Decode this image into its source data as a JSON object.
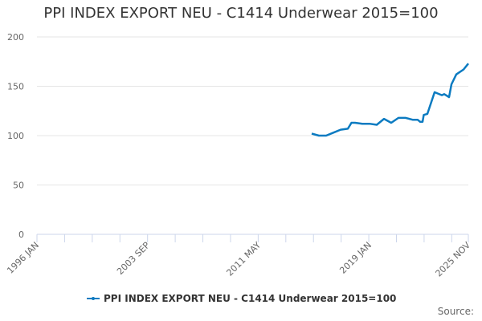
{
  "chart_data": {
    "type": "line",
    "title": "PPI INDEX EXPORT NEU - C1414 Underwear 2015=100",
    "xlabel": "",
    "ylabel": "",
    "ylim": [
      0,
      200
    ],
    "yticks": [
      0,
      50,
      100,
      150,
      200
    ],
    "xticks": [
      "1996 JAN",
      "2003 SEP",
      "2011 MAY",
      "2019 JAN",
      "2025 NOV"
    ],
    "grid": true,
    "legend_position": "bottom",
    "series": [
      {
        "name": "PPI INDEX EXPORT NEU - C1414 Underwear 2015=100",
        "color": "#0c7bc1",
        "x": [
          "2015 JAN",
          "2015 JUL",
          "2016 JAN",
          "2016 JUL",
          "2017 JAN",
          "2017 JUL",
          "2017 OCT",
          "2018 JAN",
          "2018 JUL",
          "2019 JAN",
          "2019 JUL",
          "2020 JAN",
          "2020 JUL",
          "2021 JAN",
          "2021 JUL",
          "2022 JAN",
          "2022 MAY",
          "2022 JUL",
          "2022 SEP",
          "2022 OCT",
          "2023 JAN",
          "2023 JUL",
          "2024 JAN",
          "2024 MAR",
          "2024 JUL",
          "2024 SEP",
          "2025 JAN",
          "2025 JUL",
          "2025 NOV"
        ],
        "values": [
          102,
          100,
          100,
          103,
          106,
          107,
          113,
          113,
          112,
          112,
          111,
          117,
          113,
          118,
          118,
          116,
          116,
          114,
          114,
          121,
          122,
          144,
          141,
          142,
          139,
          152,
          162,
          167,
          173
        ]
      }
    ]
  },
  "title": "PPI INDEX EXPORT NEU - C1414 Underwear 2015=100",
  "legend": {
    "label": "PPI INDEX EXPORT NEU - C1414 Underwear 2015=100"
  },
  "source": {
    "label": "Source:"
  }
}
